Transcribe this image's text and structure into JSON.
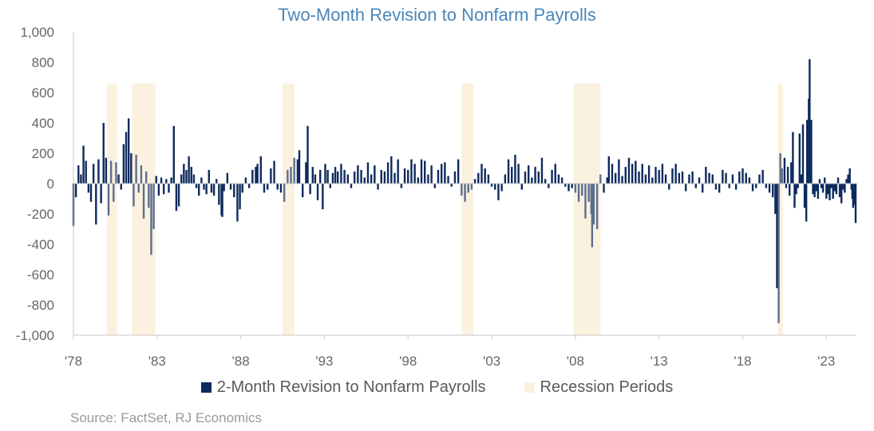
{
  "chart_data": {
    "type": "bar",
    "title": "Two-Month Revision to Nonfarm Payrolls",
    "xlabel": "",
    "ylabel": "",
    "ylim": [
      -1000,
      1000
    ],
    "xlim": [
      1978.0,
      2024.75
    ],
    "yticks": [
      {
        "value": 1000,
        "label": "1,000"
      },
      {
        "value": 800,
        "label": "800"
      },
      {
        "value": 600,
        "label": "600"
      },
      {
        "value": 400,
        "label": "400"
      },
      {
        "value": 200,
        "label": "200"
      },
      {
        "value": 0,
        "label": "0"
      },
      {
        "value": -200,
        "label": "-200"
      },
      {
        "value": -400,
        "label": "-400"
      },
      {
        "value": -600,
        "label": "-600"
      },
      {
        "value": -800,
        "label": "-800"
      },
      {
        "value": -1000,
        "label": "-1,000"
      }
    ],
    "xticks": [
      {
        "value": 1978,
        "label": "'78"
      },
      {
        "value": 1983,
        "label": "'83"
      },
      {
        "value": 1988,
        "label": "'88"
      },
      {
        "value": 1993,
        "label": "'93"
      },
      {
        "value": 1998,
        "label": "'98"
      },
      {
        "value": 2003,
        "label": "'03"
      },
      {
        "value": 2008,
        "label": "'08"
      },
      {
        "value": 2013,
        "label": "'13"
      },
      {
        "value": 2018,
        "label": "'18"
      },
      {
        "value": 2023,
        "label": "'23"
      }
    ],
    "recessions": [
      {
        "start": 1980.0,
        "end": 1980.6
      },
      {
        "start": 1981.5,
        "end": 1982.9
      },
      {
        "start": 1990.5,
        "end": 1991.2
      },
      {
        "start": 2001.2,
        "end": 2001.9
      },
      {
        "start": 2007.9,
        "end": 2009.5
      },
      {
        "start": 2020.1,
        "end": 2020.4
      }
    ],
    "series": [
      {
        "name": "2-Month Revision to Nonfarm Payrolls",
        "color": "#0d2a5c",
        "points": [
          [
            1978.0,
            -280
          ],
          [
            1978.15,
            -90
          ],
          [
            1978.3,
            120
          ],
          [
            1978.45,
            60
          ],
          [
            1978.6,
            250
          ],
          [
            1978.75,
            150
          ],
          [
            1978.9,
            -60
          ],
          [
            1979.05,
            -120
          ],
          [
            1979.2,
            130
          ],
          [
            1979.35,
            -270
          ],
          [
            1979.5,
            160
          ],
          [
            1979.65,
            -130
          ],
          [
            1979.8,
            400
          ],
          [
            1979.95,
            170
          ],
          [
            1980.1,
            -210
          ],
          [
            1980.25,
            150
          ],
          [
            1980.4,
            -120
          ],
          [
            1980.55,
            140
          ],
          [
            1980.7,
            60
          ],
          [
            1980.85,
            -40
          ],
          [
            1981.0,
            260
          ],
          [
            1981.15,
            340
          ],
          [
            1981.3,
            430
          ],
          [
            1981.45,
            200
          ],
          [
            1981.6,
            -150
          ],
          [
            1981.75,
            190
          ],
          [
            1981.9,
            -60
          ],
          [
            1982.05,
            120
          ],
          [
            1982.2,
            -230
          ],
          [
            1982.35,
            80
          ],
          [
            1982.5,
            -160
          ],
          [
            1982.65,
            -470
          ],
          [
            1982.8,
            -300
          ],
          [
            1982.95,
            50
          ],
          [
            1983.1,
            -80
          ],
          [
            1983.25,
            40
          ],
          [
            1983.4,
            -70
          ],
          [
            1983.55,
            30
          ],
          [
            1983.7,
            -60
          ],
          [
            1983.85,
            40
          ],
          [
            1984.0,
            380
          ],
          [
            1984.15,
            -180
          ],
          [
            1984.3,
            -150
          ],
          [
            1984.45,
            60
          ],
          [
            1984.6,
            130
          ],
          [
            1984.75,
            90
          ],
          [
            1984.9,
            180
          ],
          [
            1985.05,
            110
          ],
          [
            1985.2,
            60
          ],
          [
            1985.35,
            -30
          ],
          [
            1985.5,
            -80
          ],
          [
            1985.65,
            40
          ],
          [
            1985.8,
            -40
          ],
          [
            1985.95,
            -70
          ],
          [
            1986.1,
            90
          ],
          [
            1986.25,
            -60
          ],
          [
            1986.4,
            -80
          ],
          [
            1986.55,
            30
          ],
          [
            1986.7,
            -140
          ],
          [
            1986.85,
            -210
          ],
          [
            1986.9,
            -220
          ],
          [
            1987.0,
            -50
          ],
          [
            1987.2,
            70
          ],
          [
            1987.4,
            -40
          ],
          [
            1987.6,
            -90
          ],
          [
            1987.8,
            -250
          ],
          [
            1987.95,
            -170
          ],
          [
            1988.1,
            -60
          ],
          [
            1988.3,
            40
          ],
          [
            1988.5,
            -30
          ],
          [
            1988.7,
            90
          ],
          [
            1988.9,
            110
          ],
          [
            1989.0,
            130
          ],
          [
            1989.2,
            180
          ],
          [
            1989.4,
            -60
          ],
          [
            1989.6,
            -40
          ],
          [
            1989.8,
            100
          ],
          [
            1990.0,
            150
          ],
          [
            1990.2,
            -40
          ],
          [
            1990.4,
            -60
          ],
          [
            1990.6,
            -120
          ],
          [
            1990.8,
            90
          ],
          [
            1991.0,
            110
          ],
          [
            1991.2,
            170
          ],
          [
            1991.4,
            160
          ],
          [
            1991.5,
            220
          ],
          [
            1991.7,
            -90
          ],
          [
            1991.9,
            140
          ],
          [
            1992.0,
            380
          ],
          [
            1992.15,
            -70
          ],
          [
            1992.3,
            110
          ],
          [
            1992.45,
            60
          ],
          [
            1992.6,
            -110
          ],
          [
            1992.75,
            90
          ],
          [
            1992.9,
            -170
          ],
          [
            1993.05,
            130
          ],
          [
            1993.2,
            90
          ],
          [
            1993.35,
            -30
          ],
          [
            1993.5,
            70
          ],
          [
            1993.65,
            110
          ],
          [
            1993.8,
            80
          ],
          [
            1994.0,
            130
          ],
          [
            1994.2,
            90
          ],
          [
            1994.4,
            60
          ],
          [
            1994.6,
            -30
          ],
          [
            1994.8,
            80
          ],
          [
            1995.0,
            120
          ],
          [
            1995.2,
            90
          ],
          [
            1995.4,
            40
          ],
          [
            1995.6,
            140
          ],
          [
            1995.8,
            60
          ],
          [
            1996.0,
            120
          ],
          [
            1996.2,
            -40
          ],
          [
            1996.4,
            90
          ],
          [
            1996.6,
            80
          ],
          [
            1996.8,
            140
          ],
          [
            1997.0,
            180
          ],
          [
            1997.2,
            70
          ],
          [
            1997.4,
            160
          ],
          [
            1997.6,
            -30
          ],
          [
            1997.8,
            100
          ],
          [
            1998.0,
            90
          ],
          [
            1998.2,
            160
          ],
          [
            1998.4,
            130
          ],
          [
            1998.6,
            40
          ],
          [
            1998.8,
            160
          ],
          [
            1999.0,
            150
          ],
          [
            1999.2,
            60
          ],
          [
            1999.4,
            120
          ],
          [
            1999.6,
            -30
          ],
          [
            1999.8,
            90
          ],
          [
            2000.0,
            130
          ],
          [
            2000.2,
            140
          ],
          [
            2000.4,
            50
          ],
          [
            2000.6,
            -20
          ],
          [
            2000.8,
            80
          ],
          [
            2001.0,
            160
          ],
          [
            2001.2,
            -80
          ],
          [
            2001.4,
            -120
          ],
          [
            2001.6,
            -60
          ],
          [
            2001.8,
            -40
          ],
          [
            2002.0,
            30
          ],
          [
            2002.2,
            70
          ],
          [
            2002.4,
            130
          ],
          [
            2002.6,
            100
          ],
          [
            2002.8,
            60
          ],
          [
            2003.0,
            -20
          ],
          [
            2003.2,
            -40
          ],
          [
            2003.4,
            -110
          ],
          [
            2003.6,
            -50
          ],
          [
            2003.8,
            60
          ],
          [
            2004.0,
            160
          ],
          [
            2004.2,
            110
          ],
          [
            2004.4,
            190
          ],
          [
            2004.6,
            130
          ],
          [
            2004.8,
            -40
          ],
          [
            2005.0,
            80
          ],
          [
            2005.2,
            120
          ],
          [
            2005.4,
            40
          ],
          [
            2005.6,
            110
          ],
          [
            2005.8,
            80
          ],
          [
            2006.0,
            170
          ],
          [
            2006.2,
            30
          ],
          [
            2006.4,
            -30
          ],
          [
            2006.6,
            90
          ],
          [
            2006.8,
            130
          ],
          [
            2007.0,
            60
          ],
          [
            2007.2,
            40
          ],
          [
            2007.4,
            -20
          ],
          [
            2007.6,
            -50
          ],
          [
            2007.8,
            -30
          ],
          [
            2008.0,
            -60
          ],
          [
            2008.2,
            -120
          ],
          [
            2008.4,
            -80
          ],
          [
            2008.6,
            -230
          ],
          [
            2008.8,
            -120
          ],
          [
            2008.95,
            -200
          ],
          [
            2009.0,
            -420
          ],
          [
            2009.1,
            -270
          ],
          [
            2009.3,
            -300
          ],
          [
            2009.5,
            60
          ],
          [
            2009.7,
            -60
          ],
          [
            2009.9,
            40
          ],
          [
            2010.0,
            180
          ],
          [
            2010.2,
            130
          ],
          [
            2010.4,
            70
          ],
          [
            2010.6,
            160
          ],
          [
            2010.8,
            50
          ],
          [
            2011.0,
            110
          ],
          [
            2011.2,
            170
          ],
          [
            2011.4,
            130
          ],
          [
            2011.6,
            150
          ],
          [
            2011.8,
            80
          ],
          [
            2012.0,
            130
          ],
          [
            2012.2,
            60
          ],
          [
            2012.4,
            120
          ],
          [
            2012.6,
            40
          ],
          [
            2012.8,
            110
          ],
          [
            2013.0,
            90
          ],
          [
            2013.2,
            130
          ],
          [
            2013.4,
            60
          ],
          [
            2013.6,
            -40
          ],
          [
            2013.8,
            100
          ],
          [
            2014.0,
            130
          ],
          [
            2014.2,
            70
          ],
          [
            2014.4,
            80
          ],
          [
            2014.6,
            -50
          ],
          [
            2014.8,
            60
          ],
          [
            2015.0,
            80
          ],
          [
            2015.2,
            -30
          ],
          [
            2015.4,
            40
          ],
          [
            2015.6,
            -60
          ],
          [
            2015.8,
            110
          ],
          [
            2016.0,
            70
          ],
          [
            2016.2,
            60
          ],
          [
            2016.4,
            -40
          ],
          [
            2016.6,
            -60
          ],
          [
            2016.8,
            90
          ],
          [
            2017.0,
            70
          ],
          [
            2017.2,
            -30
          ],
          [
            2017.4,
            60
          ],
          [
            2017.6,
            -40
          ],
          [
            2017.8,
            80
          ],
          [
            2018.0,
            100
          ],
          [
            2018.2,
            70
          ],
          [
            2018.4,
            40
          ],
          [
            2018.6,
            -50
          ],
          [
            2018.8,
            -30
          ],
          [
            2019.0,
            60
          ],
          [
            2019.2,
            90
          ],
          [
            2019.4,
            -30
          ],
          [
            2019.6,
            -60
          ],
          [
            2019.8,
            -90
          ],
          [
            2019.95,
            -200
          ],
          [
            2020.05,
            -690
          ],
          [
            2020.15,
            -920
          ],
          [
            2020.25,
            200
          ],
          [
            2020.35,
            100
          ],
          [
            2020.5,
            170
          ],
          [
            2020.6,
            -30
          ],
          [
            2020.7,
            110
          ],
          [
            2020.8,
            -80
          ],
          [
            2020.9,
            140
          ],
          [
            2021.0,
            340
          ],
          [
            2021.1,
            -160
          ],
          [
            2021.2,
            -70
          ],
          [
            2021.3,
            -30
          ],
          [
            2021.4,
            330
          ],
          [
            2021.5,
            60
          ],
          [
            2021.6,
            390
          ],
          [
            2021.7,
            -160
          ],
          [
            2021.8,
            -250
          ],
          [
            2021.85,
            420
          ],
          [
            2021.95,
            560
          ],
          [
            2022.0,
            820
          ],
          [
            2022.1,
            420
          ],
          [
            2022.2,
            -70
          ],
          [
            2022.3,
            -90
          ],
          [
            2022.4,
            -50
          ],
          [
            2022.5,
            -100
          ],
          [
            2022.6,
            30
          ],
          [
            2022.7,
            -30
          ],
          [
            2022.8,
            -60
          ],
          [
            2022.9,
            40
          ],
          [
            2023.0,
            -100
          ],
          [
            2023.1,
            -70
          ],
          [
            2023.2,
            -110
          ],
          [
            2023.3,
            -30
          ],
          [
            2023.4,
            -100
          ],
          [
            2023.5,
            -50
          ],
          [
            2023.6,
            -70
          ],
          [
            2023.7,
            40
          ],
          [
            2023.8,
            -90
          ],
          [
            2023.9,
            -130
          ],
          [
            2024.0,
            -40
          ],
          [
            2024.1,
            -60
          ],
          [
            2024.2,
            30
          ],
          [
            2024.3,
            60
          ],
          [
            2024.4,
            100
          ],
          [
            2024.5,
            -40
          ],
          [
            2024.55,
            -100
          ],
          [
            2024.6,
            -160
          ],
          [
            2024.7,
            -140
          ],
          [
            2024.75,
            -260
          ]
        ]
      }
    ],
    "legend": {
      "placement": "bottom-center",
      "items": [
        {
          "label": "2-Month Revision to Nonfarm Payrolls",
          "color": "#0d2a5c"
        },
        {
          "label": "Recession Periods",
          "color": "#fbf1df"
        }
      ]
    },
    "grid": false
  },
  "source_note": "Source: FactSet, RJ Economics"
}
